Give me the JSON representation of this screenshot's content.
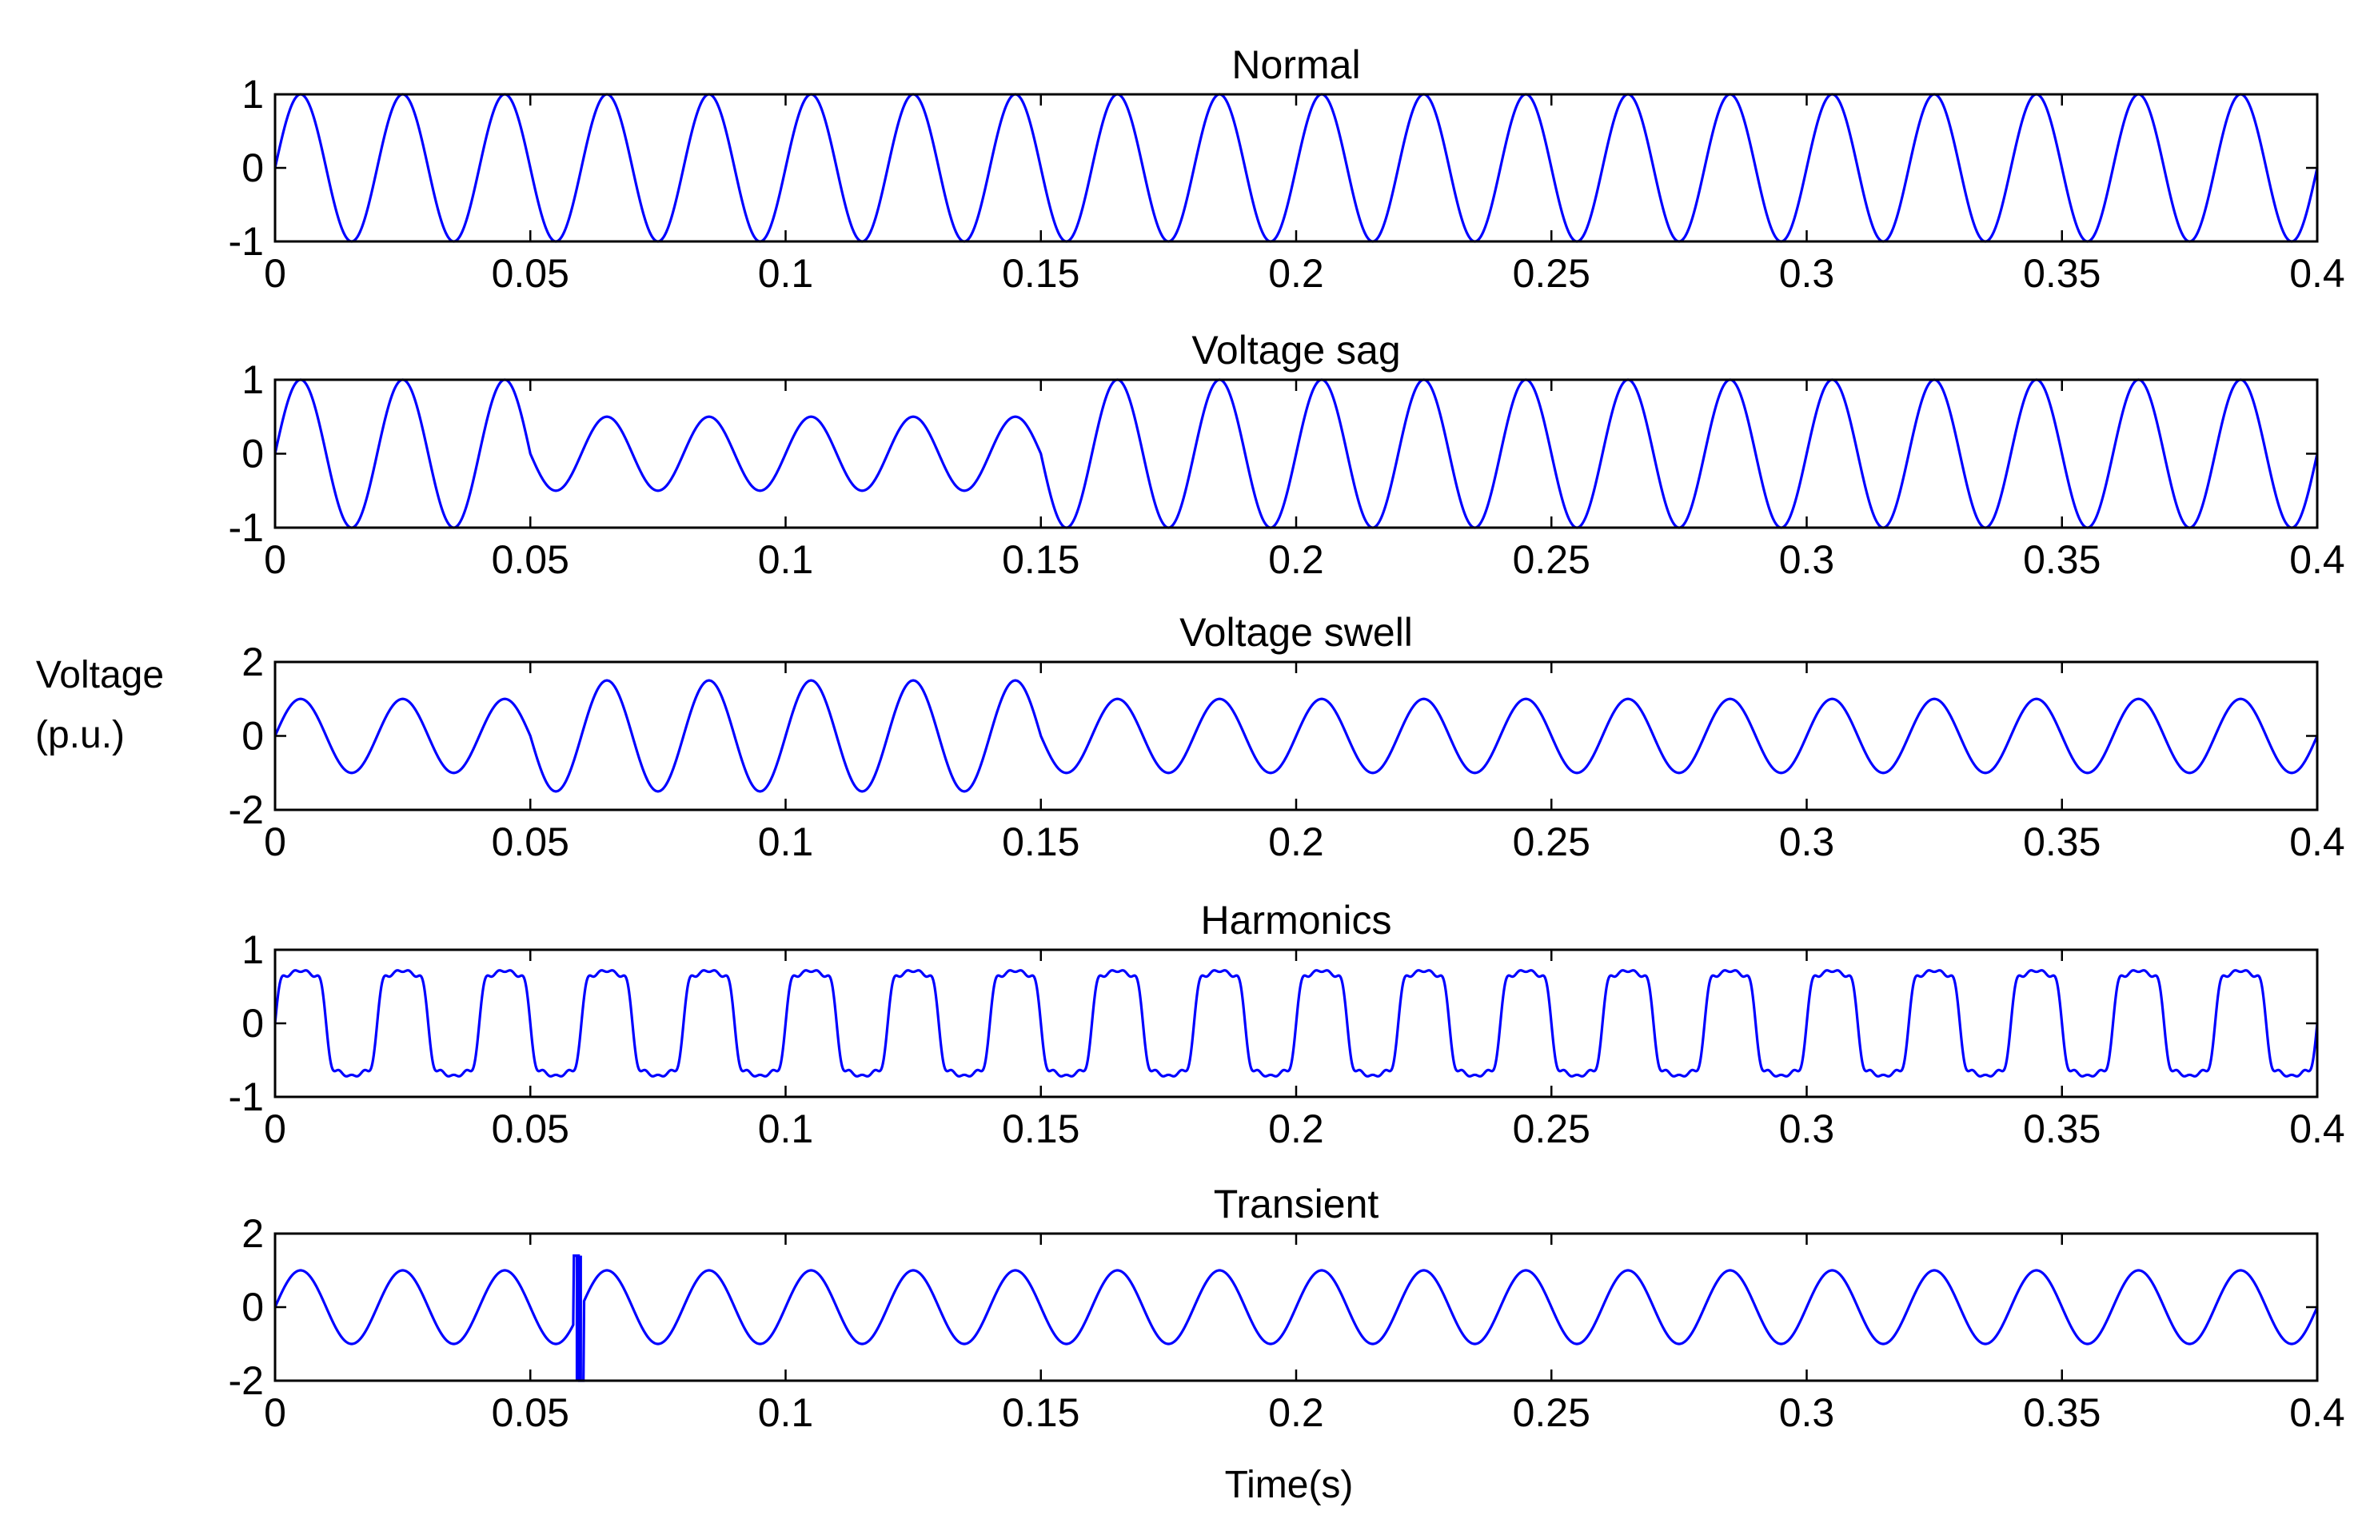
{
  "figure": {
    "ylabel_lines": [
      "Voltage",
      "(p.u.)"
    ],
    "xlabel": "Time(s)",
    "line_color": "#0000ff",
    "axis_color": "#000000",
    "background": "#ffffff"
  },
  "chart_data": [
    {
      "type": "line",
      "title": "Normal",
      "xlim": [
        0,
        0.4
      ],
      "ylim": [
        -1,
        1
      ],
      "xticks": [
        0,
        0.05,
        0.1,
        0.15,
        0.2,
        0.25,
        0.3,
        0.35,
        0.4
      ],
      "xtick_labels": [
        "0",
        "0.05",
        "0.1",
        "0.15",
        "0.2",
        "0.25",
        "0.3",
        "0.35",
        "0.4"
      ],
      "yticks": [
        -1,
        0,
        1
      ],
      "ytick_labels": [
        "-1",
        "0",
        "1"
      ],
      "grid": false,
      "series": [
        {
          "frequency_hz": 50,
          "segments": [
            {
              "t_start": 0,
              "t_end": 0.4,
              "amplitude_pu": 1.0
            }
          ]
        }
      ]
    },
    {
      "type": "line",
      "title": "Voltage sag",
      "xlim": [
        0,
        0.4
      ],
      "ylim": [
        -1,
        1
      ],
      "xticks": [
        0,
        0.05,
        0.1,
        0.15,
        0.2,
        0.25,
        0.3,
        0.35,
        0.4
      ],
      "xtick_labels": [
        "0",
        "0.05",
        "0.1",
        "0.15",
        "0.2",
        "0.25",
        "0.3",
        "0.35",
        "0.4"
      ],
      "yticks": [
        -1,
        0,
        1
      ],
      "ytick_labels": [
        "-1",
        "0",
        "1"
      ],
      "grid": false,
      "series": [
        {
          "frequency_hz": 50,
          "segments": [
            {
              "t_start": 0,
              "t_end": 0.05,
              "amplitude_pu": 1.0
            },
            {
              "t_start": 0.05,
              "t_end": 0.15,
              "amplitude_pu": 0.5
            },
            {
              "t_start": 0.15,
              "t_end": 0.4,
              "amplitude_pu": 1.0
            }
          ]
        }
      ]
    },
    {
      "type": "line",
      "title": "Voltage swell",
      "xlim": [
        0,
        0.4
      ],
      "ylim": [
        -2,
        2
      ],
      "xticks": [
        0,
        0.05,
        0.1,
        0.15,
        0.2,
        0.25,
        0.3,
        0.35,
        0.4
      ],
      "xtick_labels": [
        "0",
        "0.05",
        "0.1",
        "0.15",
        "0.2",
        "0.25",
        "0.3",
        "0.35",
        "0.4"
      ],
      "yticks": [
        -2,
        0,
        2
      ],
      "ytick_labels": [
        "-2",
        "0",
        "2"
      ],
      "grid": false,
      "series": [
        {
          "frequency_hz": 50,
          "segments": [
            {
              "t_start": 0,
              "t_end": 0.05,
              "amplitude_pu": 1.0
            },
            {
              "t_start": 0.05,
              "t_end": 0.15,
              "amplitude_pu": 1.5
            },
            {
              "t_start": 0.15,
              "t_end": 0.4,
              "amplitude_pu": 1.0
            }
          ]
        }
      ]
    },
    {
      "type": "line",
      "title": "Harmonics",
      "xlim": [
        0,
        0.4
      ],
      "ylim": [
        -1,
        1
      ],
      "xticks": [
        0,
        0.05,
        0.1,
        0.15,
        0.2,
        0.25,
        0.3,
        0.35,
        0.4
      ],
      "xtick_labels": [
        "0",
        "0.05",
        "0.1",
        "0.15",
        "0.2",
        "0.25",
        "0.3",
        "0.35",
        "0.4"
      ],
      "yticks": [
        -1,
        0,
        1
      ],
      "ytick_labels": [
        "-1",
        "0",
        "1"
      ],
      "grid": false,
      "series": [
        {
          "frequency_hz": 50,
          "segments": [
            {
              "t_start": 0,
              "t_end": 0.4,
              "amplitude_pu": 0.85
            }
          ],
          "harmonics": [
            {
              "order": 3,
              "amplitude_pu": 0.2
            },
            {
              "order": 5,
              "amplitude_pu": 0.1
            },
            {
              "order": 7,
              "amplitude_pu": 0.05
            }
          ]
        }
      ]
    },
    {
      "type": "line",
      "title": "Transient",
      "xlim": [
        0,
        0.4
      ],
      "ylim": [
        -2,
        2
      ],
      "xticks": [
        0,
        0.05,
        0.1,
        0.15,
        0.2,
        0.25,
        0.3,
        0.35,
        0.4
      ],
      "xtick_labels": [
        "0",
        "0.05",
        "0.1",
        "0.15",
        "0.2",
        "0.25",
        "0.3",
        "0.35",
        "0.4"
      ],
      "yticks": [
        -2,
        0,
        2
      ],
      "ytick_labels": [
        "-2",
        "0",
        "2"
      ],
      "grid": false,
      "series": [
        {
          "frequency_hz": 50,
          "segments": [
            {
              "t_start": 0,
              "t_end": 0.4,
              "amplitude_pu": 1.0
            }
          ],
          "transient": {
            "t_start": 0.0585,
            "t_end": 0.0605,
            "peak_pu": 1.4,
            "min_pu": -2.0
          }
        }
      ]
    }
  ]
}
